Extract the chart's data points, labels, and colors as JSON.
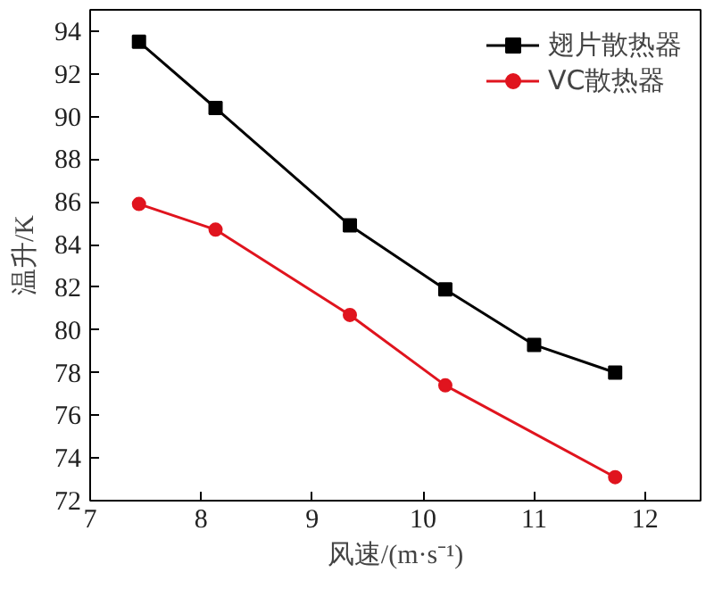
{
  "chart_data": {
    "type": "line",
    "xlabel": "风速/(m·s⁻¹)",
    "ylabel": "温升/K",
    "xlim": [
      7,
      12.5
    ],
    "xticks": [
      7,
      8,
      9,
      10,
      11,
      12
    ],
    "ylim": [
      72,
      95
    ],
    "yticks": [
      72,
      74,
      76,
      78,
      80,
      82,
      84,
      86,
      88,
      90,
      92,
      94
    ],
    "grid": false,
    "legend": "top right",
    "series": [
      {
        "name": "翅片散热器",
        "color": "#000000",
        "marker": "square",
        "x": [
          7.44,
          8.13,
          9.34,
          10.2,
          11.0,
          11.73
        ],
        "values": [
          93.5,
          90.4,
          84.9,
          81.9,
          79.3,
          78.0
        ]
      },
      {
        "name": "VC散热器",
        "color": "#e0141e",
        "marker": "circle",
        "x": [
          7.44,
          8.13,
          9.34,
          10.2,
          11.73
        ],
        "values": [
          85.9,
          84.7,
          80.7,
          77.4,
          73.1
        ]
      }
    ]
  }
}
